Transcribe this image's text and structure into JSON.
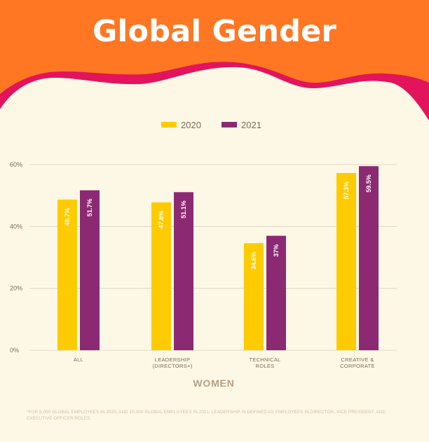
{
  "title": "Global Gender",
  "colors": {
    "header_orange": "#ff7722",
    "wave_pink": "#e2145c",
    "background": "#fdf8e6",
    "series_2020": "#fecb00",
    "series_2021": "#8b2a72",
    "axis_text": "#7a6a56",
    "grid": "#d8d0bd"
  },
  "chart_data": {
    "type": "bar",
    "title": "Global Gender",
    "xlabel": "WOMEN",
    "ylabel": "",
    "categories": [
      "ALL",
      "LEADERSHIP\n(DIRECTORS+)",
      "TECHNICAL\nROLES",
      "CREATIVE &\nCORPORATE"
    ],
    "series": [
      {
        "name": "2020",
        "values": [
          48.7,
          47.8,
          34.6,
          57.3
        ],
        "labels": [
          "48.7%",
          "47.8%",
          "34.6%",
          "57.3%"
        ],
        "color": "#fecb00"
      },
      {
        "name": "2021",
        "values": [
          51.7,
          51.1,
          37,
          59.5
        ],
        "labels": [
          "51.7%",
          "51.1%",
          "37%",
          "59.5%"
        ],
        "color": "#8b2a72"
      }
    ],
    "ylim": [
      0,
      60
    ],
    "yticks": [
      0,
      20,
      40,
      60
    ],
    "ytick_labels": [
      "0%",
      "20%",
      "40%",
      "60%"
    ],
    "grid": true,
    "legend_position": "top-center"
  },
  "footnote": "*For 8,000 global employees in 2020, and 10,000 global employees in 2021. Leadership is defined as employees in director, vice president, and executive officer roles."
}
